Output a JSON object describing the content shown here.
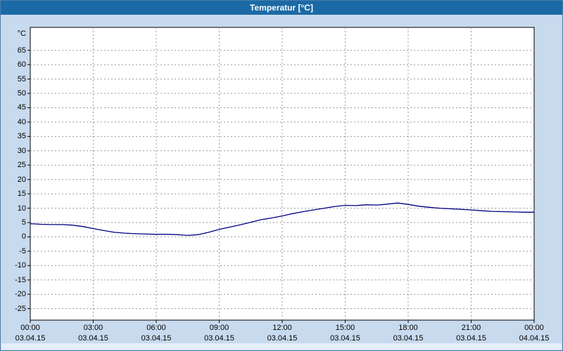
{
  "window": {
    "title": "Temperatur [°C]"
  },
  "colors": {
    "titlebar": "#1b6aa5",
    "background": "#c8daee",
    "plot_bg": "#ffffff",
    "border": "#000000",
    "grid": "#999999",
    "line": "#000080"
  },
  "chart_data": {
    "type": "line",
    "title": "Temperatur [°C]",
    "ylabel": "°C",
    "xlabel": "",
    "grid": true,
    "legend_position": "none",
    "ylim": [
      -29,
      73
    ],
    "xlim": [
      0,
      24
    ],
    "y_ticks": [
      65,
      60,
      55,
      50,
      45,
      40,
      35,
      30,
      25,
      20,
      15,
      10,
      5,
      0,
      -5,
      -10,
      -15,
      -20,
      -25
    ],
    "x_ticks": [
      {
        "hour": 0,
        "time": "00:00",
        "date": "03.04.15"
      },
      {
        "hour": 3,
        "time": "03:00",
        "date": "03.04.15"
      },
      {
        "hour": 6,
        "time": "06:00",
        "date": "03.04.15"
      },
      {
        "hour": 9,
        "time": "09:00",
        "date": "03.04.15"
      },
      {
        "hour": 12,
        "time": "12:00",
        "date": "03.04.15"
      },
      {
        "hour": 15,
        "time": "15:00",
        "date": "03.04.15"
      },
      {
        "hour": 18,
        "time": "18:00",
        "date": "03.04.15"
      },
      {
        "hour": 21,
        "time": "21:00",
        "date": "03.04.15"
      },
      {
        "hour": 24,
        "time": "00:00",
        "date": "04.04.15"
      }
    ],
    "series": [
      {
        "name": "Temperatur",
        "color": "#000080",
        "x": [
          0,
          0.5,
          1,
          1.5,
          2,
          2.5,
          3,
          3.5,
          4,
          4.5,
          5,
          5.5,
          6,
          6.5,
          7,
          7.5,
          8,
          8.5,
          9,
          9.5,
          10,
          10.5,
          11,
          11.5,
          12,
          12.5,
          13,
          13.5,
          14,
          14.5,
          15,
          15.5,
          16,
          16.5,
          17,
          17.5,
          18,
          18.5,
          19,
          19.5,
          20,
          20.5,
          21,
          21.5,
          22,
          22.5,
          23,
          23.5,
          24
        ],
        "values": [
          4.6,
          4.4,
          4.3,
          4.3,
          4.1,
          3.6,
          2.9,
          2.2,
          1.6,
          1.3,
          1.1,
          1.0,
          0.9,
          0.9,
          0.8,
          0.5,
          0.8,
          1.6,
          2.6,
          3.4,
          4.2,
          5.1,
          6.0,
          6.6,
          7.3,
          8.1,
          8.8,
          9.4,
          10.0,
          10.6,
          11.0,
          10.9,
          11.2,
          11.1,
          11.4,
          11.8,
          11.3,
          10.7,
          10.3,
          10.0,
          9.8,
          9.6,
          9.4,
          9.1,
          8.9,
          8.8,
          8.7,
          8.6,
          8.6
        ]
      }
    ]
  }
}
